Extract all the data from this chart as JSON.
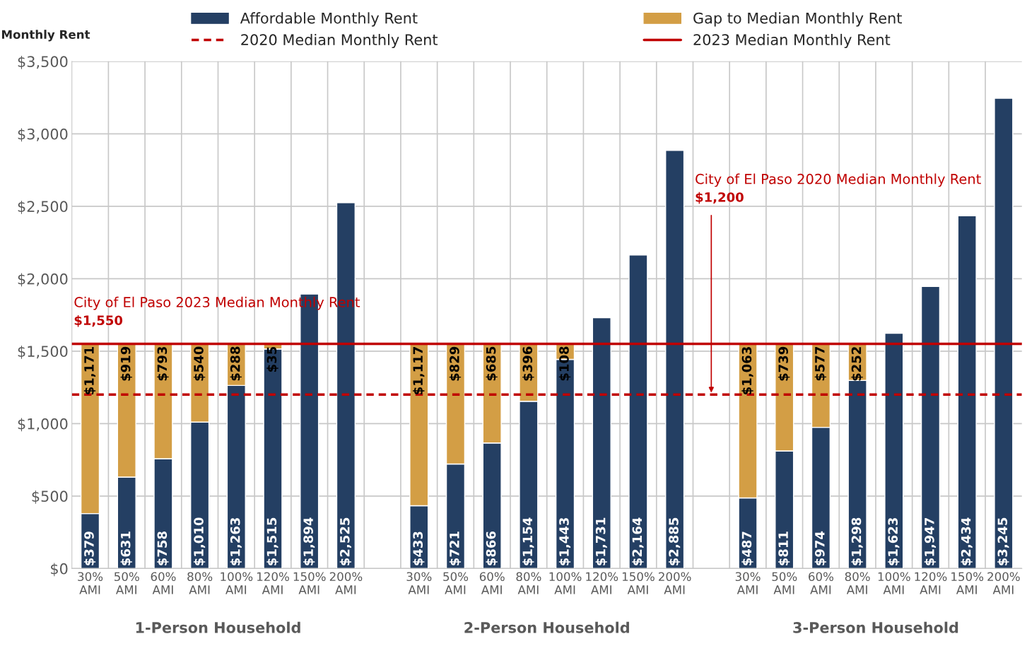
{
  "chart_data": {
    "type": "bar",
    "stacked": true,
    "ylabel": "Monthly Rent",
    "categories": [
      "30% AMI",
      "50% AMI",
      "60% AMI",
      "80% AMI",
      "100% AMI",
      "120% AMI",
      "150% AMI",
      "200% AMI",
      null,
      "30% AMI",
      "50% AMI",
      "60% AMI",
      "80% AMI",
      "100% AMI",
      "120% AMI",
      "150% AMI",
      "200% AMI",
      null,
      "30% AMI",
      "50% AMI",
      "60% AMI",
      "80% AMI",
      "100% AMI",
      "120% AMI",
      "150% AMI",
      "200% AMI"
    ],
    "series": [
      {
        "name": "Affordable Monthly Rent",
        "color": "#243f63",
        "values": [
          379,
          631,
          758,
          1010,
          1263,
          1515,
          1894,
          2525,
          null,
          433,
          721,
          866,
          1154,
          1443,
          1731,
          2164,
          2885,
          null,
          487,
          811,
          974,
          1298,
          1623,
          1947,
          2434,
          3245
        ],
        "value_labels": [
          "$379",
          "$631",
          "$758",
          "$1,010",
          "$1,263",
          "$1,515",
          "$1,894",
          "$2,525",
          null,
          "$433",
          "$721",
          "$866",
          "$1,154",
          "$1,443",
          "$1,731",
          "$2,164",
          "$2,885",
          null,
          "$487",
          "$811",
          "$974",
          "$1,298",
          "$1,623",
          "$1,947",
          "$2,434",
          "$3,245"
        ]
      },
      {
        "name": "Gap to Median Monthly Rent",
        "color": "#d39e45",
        "values": [
          1171,
          919,
          793,
          540,
          288,
          35,
          null,
          null,
          null,
          1117,
          829,
          685,
          396,
          108,
          null,
          null,
          null,
          null,
          1063,
          739,
          577,
          252,
          null,
          null,
          null,
          null
        ],
        "value_labels": [
          "$1,171",
          "$919",
          "$793",
          "$540",
          "$288",
          "$35",
          null,
          null,
          null,
          "$1,117",
          "$829",
          "$685",
          "$396",
          "$108",
          null,
          null,
          null,
          null,
          "$1,063",
          "$739",
          "$577",
          "$252",
          null,
          null,
          null,
          null
        ]
      }
    ],
    "ref_lines": [
      {
        "axis": "y",
        "value": 1200,
        "label": "2020 Median Monthly Rent",
        "color": "#c00000",
        "line_style": "dashed"
      },
      {
        "axis": "y",
        "value": 1550,
        "label": "2023 Median Monthly Rent",
        "color": "#c00000",
        "line_style": "solid"
      }
    ],
    "annotations": [
      "City of El Paso 2023 Median Monthly Rent",
      "$1,550",
      "City of El Paso 2020 Median Monthly Rent",
      "$1,200",
      "1-Person Household",
      "2-Person Household",
      "3-Person Household"
    ],
    "ylim": [
      0,
      3500
    ],
    "yticks": [
      {
        "value": 0,
        "label": "$0"
      },
      {
        "value": 500,
        "label": "$500"
      },
      {
        "value": 1000,
        "label": "$1,000"
      },
      {
        "value": 1500,
        "label": "$1,500"
      },
      {
        "value": 2000,
        "label": "$2,000"
      },
      {
        "value": 2500,
        "label": "$2,500"
      },
      {
        "value": 3000,
        "label": "$3,000"
      },
      {
        "value": 3500,
        "label": "$3,500"
      }
    ],
    "grid": true,
    "legend": "top"
  }
}
